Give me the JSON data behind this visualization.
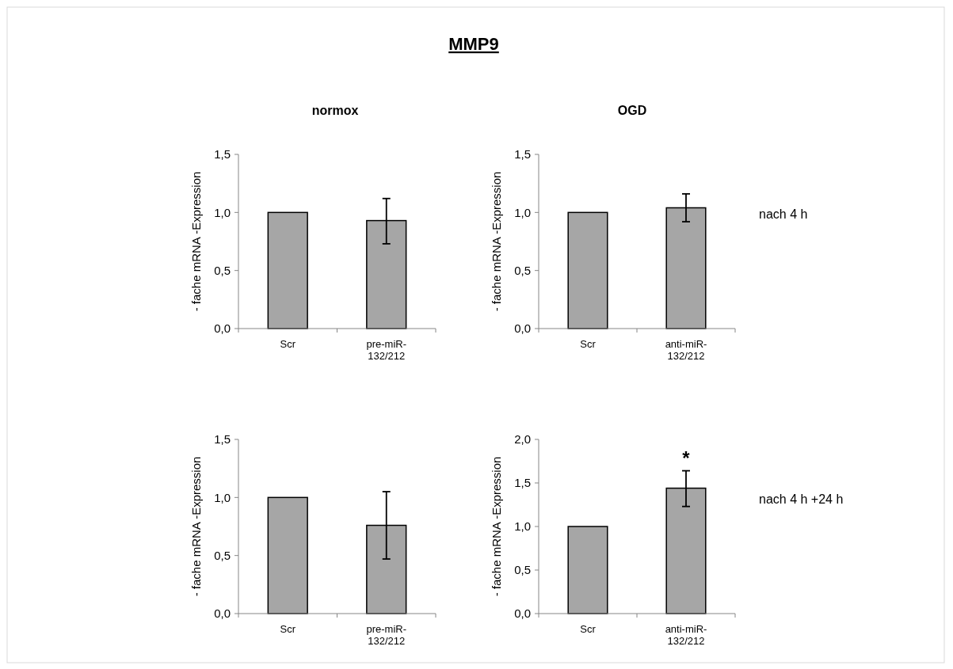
{
  "chart_data": [
    {
      "type": "bar",
      "title": "normox",
      "ylabel": "- fache mRNA -Expression",
      "categories": [
        "Scr",
        "pre-miR-132/212"
      ],
      "values": [
        1.0,
        0.93
      ],
      "errors": [
        null,
        [
          0.73,
          1.12
        ]
      ],
      "color": "#a6a6a6",
      "ylim": [
        0,
        1.5
      ],
      "yticks": [
        {
          "value": 0,
          "label": "0,0"
        },
        {
          "value": 0.5,
          "label": "0,5"
        },
        {
          "value": 1,
          "label": "1,0"
        },
        {
          "value": 1.5,
          "label": "1,5"
        }
      ],
      "grid": false,
      "annotations": [
        "MMP9"
      ]
    },
    {
      "type": "bar",
      "title": "OGD",
      "ylabel": "- fache mRNA -Expression",
      "categories": [
        "Scr",
        "anti-miR-132/212"
      ],
      "values": [
        1.0,
        1.04
      ],
      "errors": [
        null,
        [
          0.92,
          1.16
        ]
      ],
      "color": "#a6a6a6",
      "ylim": [
        0,
        1.5
      ],
      "yticks": [
        {
          "value": 0,
          "label": "0,0"
        },
        {
          "value": 0.5,
          "label": "0,5"
        },
        {
          "value": 1,
          "label": "1,0"
        },
        {
          "value": 1.5,
          "label": "1,5"
        }
      ],
      "grid": false,
      "annotations": [
        "nach 4 h"
      ]
    },
    {
      "type": "bar",
      "ylabel": "- fache mRNA -Expression",
      "categories": [
        "Scr",
        "pre-miR-132/212"
      ],
      "values": [
        1.0,
        0.76
      ],
      "errors": [
        null,
        [
          0.47,
          1.05
        ]
      ],
      "color": "#a6a6a6",
      "ylim": [
        0,
        1.5
      ],
      "yticks": [
        {
          "value": 0,
          "label": "0,0"
        },
        {
          "value": 0.5,
          "label": "0,5"
        },
        {
          "value": 1,
          "label": "1,0"
        },
        {
          "value": 1.5,
          "label": "1,5"
        }
      ],
      "grid": false
    },
    {
      "type": "bar",
      "ylabel": "- fache mRNA -Expression",
      "categories": [
        "Scr",
        "anti-miR-132/212"
      ],
      "values": [
        1.0,
        1.44
      ],
      "errors": [
        null,
        [
          1.23,
          1.64
        ]
      ],
      "color": "#a6a6a6",
      "ylim": [
        0,
        2
      ],
      "yticks": [
        {
          "value": 0,
          "label": "0,0"
        },
        {
          "value": 0.5,
          "label": "0,5"
        },
        {
          "value": 1,
          "label": "1,0"
        },
        {
          "value": 1.5,
          "label": "1,5"
        },
        {
          "value": 2,
          "label": "2,0"
        }
      ],
      "grid": false,
      "annotations": [
        {
          "text": "*",
          "x": "anti-miR-132/212",
          "y": 1.64
        },
        "nach 4 h +24 h"
      ]
    }
  ]
}
